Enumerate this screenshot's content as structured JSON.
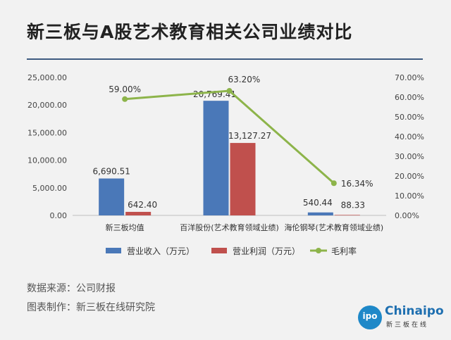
{
  "title": "新三板与A股艺术教育相关公司业绩对比",
  "source": "数据来源：公司财报",
  "maker": "图表制作：新三板在线研究院",
  "logo": {
    "brand": "Chinaipo",
    "badge": "ipo",
    "sub": "新三板在线"
  },
  "colors": {
    "revenue": "#4a78b8",
    "profit": "#c0504d",
    "margin": "#8db44a",
    "rule": "#3d5a80"
  },
  "chart_data": {
    "type": "bar",
    "categories": [
      "新三板均值",
      "百洋股份(艺术教育领域业绩)",
      "海伦钢琴(艺术教育领域业绩)"
    ],
    "series": [
      {
        "name": "营业收入（万元）",
        "type": "bar",
        "axis": "left",
        "values": [
          6690.51,
          20769.41,
          540.44
        ],
        "labels": [
          "6,690.51",
          "20,769.41",
          "540.44"
        ]
      },
      {
        "name": "营业利润（万元）",
        "type": "bar",
        "axis": "left",
        "values": [
          642.4,
          13127.27,
          88.33
        ],
        "labels": [
          "642.40",
          "13,127.27",
          "88.33"
        ]
      },
      {
        "name": "毛利率",
        "type": "line",
        "axis": "right",
        "values": [
          59.0,
          63.2,
          16.34
        ],
        "labels": [
          "59.00%",
          "63.20%",
          "16.34%"
        ]
      }
    ],
    "ylim": [
      0,
      25000
    ],
    "yticks": [
      "0.00",
      "5,000.00",
      "10,000.00",
      "15,000.00",
      "20,000.00",
      "25,000.00"
    ],
    "y2lim": [
      0,
      70
    ],
    "y2ticks": [
      "0.00%",
      "10.00%",
      "20.00%",
      "30.00%",
      "40.00%",
      "50.00%",
      "60.00%",
      "70.00%"
    ],
    "legend_position": "bottom",
    "grid": false
  }
}
